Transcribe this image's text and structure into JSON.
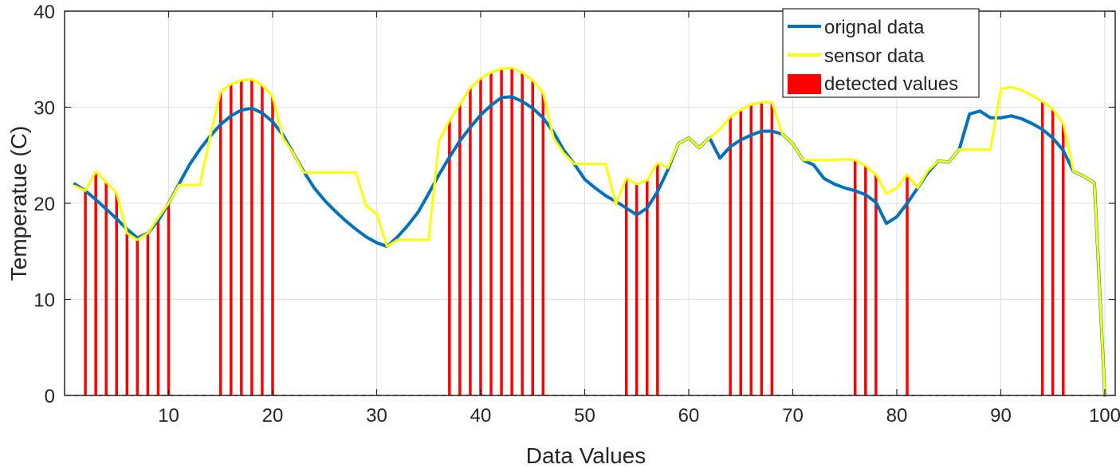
{
  "chart_data": {
    "type": "line",
    "title": "",
    "xlabel": "Data Values",
    "ylabel": "Temperatue (C)",
    "xlim": [
      0,
      101
    ],
    "ylim": [
      0,
      40
    ],
    "x_ticks": [
      10,
      20,
      30,
      40,
      50,
      60,
      70,
      80,
      90,
      100
    ],
    "y_ticks": [
      0,
      10,
      20,
      30,
      40
    ],
    "grid": true,
    "legend_position": "top-right",
    "colors": {
      "original": "#0072BD",
      "sensor": "#FFFF00",
      "detected": "#FF0000",
      "grid": "#E0E0E0",
      "axis": "#262626"
    },
    "series": [
      {
        "name": "orignal data",
        "color": "#0072BD",
        "x": [
          1,
          2,
          3,
          4,
          5,
          6,
          7,
          8,
          9,
          10,
          11,
          12,
          13,
          14,
          15,
          16,
          17,
          18,
          19,
          20,
          21,
          22,
          23,
          24,
          25,
          26,
          27,
          28,
          29,
          30,
          31,
          32,
          33,
          34,
          35,
          36,
          37,
          38,
          39,
          40,
          41,
          42,
          43,
          44,
          45,
          46,
          47,
          48,
          49,
          50,
          51,
          52,
          53,
          54,
          55,
          56,
          57,
          58,
          59,
          60,
          61,
          62,
          63,
          64,
          65,
          66,
          67,
          68,
          69,
          70,
          71,
          72,
          73,
          74,
          75,
          76,
          77,
          78,
          79,
          80,
          81,
          82,
          83,
          84,
          85,
          86,
          87,
          88,
          89,
          90,
          91,
          92,
          93,
          94,
          95,
          96,
          97,
          98,
          99,
          100
        ],
        "values": [
          22,
          21.3,
          20.4,
          19.4,
          18.4,
          17.3,
          16.4,
          16.9,
          18.2,
          20,
          22,
          24,
          25.6,
          27,
          28.2,
          29.1,
          29.7,
          29.9,
          29.4,
          28.5,
          27.1,
          25.2,
          23.3,
          21.6,
          20.3,
          19.2,
          18.2,
          17.3,
          16.5,
          15.9,
          15.5,
          16.5,
          17.7,
          19.1,
          21,
          23,
          24.8,
          26.5,
          27.9,
          29.2,
          30.2,
          31,
          31.1,
          30.6,
          29.9,
          28.9,
          27.4,
          25.5,
          24.1,
          22.5,
          21.6,
          20.8,
          20.2,
          19.5,
          18.8,
          19.5,
          21.2,
          23.5,
          26.2,
          26.8,
          25.8,
          26.8,
          24.7,
          25.9,
          26.6,
          27.1,
          27.5,
          27.5,
          27.2,
          26.2,
          24.5,
          24,
          22.6,
          22,
          21.6,
          21.3,
          20.9,
          20.1,
          17.9,
          18.6,
          20,
          21.6,
          23.2,
          24.4,
          24.3,
          25.6,
          29.3,
          29.6,
          28.9,
          28.9,
          29.1,
          28.8,
          28.3,
          27.7,
          26.8,
          25.5,
          23.3,
          22.8,
          22.1,
          0
        ]
      },
      {
        "name": "sensor data",
        "color": "#FFFF00",
        "x": [
          1,
          2,
          3,
          4,
          5,
          6,
          7,
          8,
          9,
          10,
          11,
          12,
          13,
          14,
          15,
          16,
          17,
          18,
          19,
          20,
          21,
          22,
          23,
          24,
          25,
          26,
          27,
          28,
          29,
          30,
          31,
          32,
          33,
          34,
          35,
          36,
          37,
          38,
          39,
          40,
          41,
          42,
          43,
          44,
          45,
          46,
          47,
          48,
          49,
          50,
          51,
          52,
          53,
          54,
          55,
          56,
          57,
          58,
          59,
          60,
          61,
          62,
          63,
          64,
          65,
          66,
          67,
          68,
          69,
          70,
          71,
          72,
          73,
          74,
          75,
          76,
          77,
          78,
          79,
          80,
          81,
          82,
          83,
          84,
          85,
          86,
          87,
          88,
          89,
          90,
          91,
          92,
          93,
          94,
          95,
          96,
          97,
          98,
          99,
          100
        ],
        "values": [
          21.8,
          21.3,
          23.3,
          22.2,
          21.1,
          16.9,
          16.2,
          16.9,
          18.5,
          20,
          21.9,
          21.9,
          21.9,
          27,
          31.6,
          32.4,
          32.8,
          32.9,
          32.3,
          31.1,
          26.8,
          25.2,
          23.2,
          23.2,
          23.2,
          23.2,
          23.2,
          23.2,
          19.7,
          18.9,
          15.5,
          16.2,
          16.2,
          16.2,
          16.2,
          26.5,
          28.6,
          30.3,
          32,
          33,
          33.6,
          34,
          34.1,
          33.6,
          32.8,
          31.5,
          26.8,
          25.2,
          24.1,
          24.1,
          24.1,
          24.1,
          19.9,
          22.6,
          22,
          22.4,
          24.2,
          23.7,
          26.2,
          26.8,
          25.8,
          26.8,
          27.7,
          29,
          29.7,
          30.3,
          30.5,
          30.5,
          27.2,
          26.2,
          24.5,
          24.5,
          24.5,
          24.5,
          24.6,
          24.5,
          23.9,
          23,
          21,
          21.6,
          23,
          21.6,
          23.4,
          24.4,
          24.3,
          25.6,
          25.6,
          25.6,
          25.6,
          31.9,
          32.1,
          31.8,
          31.2,
          30.6,
          29.8,
          28.3,
          23.3,
          22.8,
          22.1,
          0
        ]
      },
      {
        "name": "detected values",
        "color": "#FF0000",
        "type": "stem",
        "x": [
          2,
          3,
          4,
          5,
          6,
          7,
          8,
          9,
          10,
          15,
          16,
          17,
          18,
          19,
          20,
          37,
          38,
          39,
          40,
          41,
          42,
          43,
          44,
          45,
          46,
          54,
          55,
          56,
          57,
          64,
          65,
          66,
          67,
          68,
          76,
          77,
          78,
          81,
          94,
          95,
          96
        ],
        "values": [
          21.3,
          23.3,
          22.2,
          21.1,
          16.9,
          16.2,
          16.9,
          18.5,
          20,
          31.6,
          32.4,
          32.8,
          32.9,
          32.3,
          31.1,
          28.6,
          30.3,
          32,
          33,
          33.6,
          34,
          34.1,
          33.6,
          32.8,
          31.5,
          22.6,
          22,
          22.4,
          24.2,
          29,
          29.7,
          30.3,
          30.5,
          30.5,
          24.5,
          23.9,
          23,
          23,
          30.6,
          29.8,
          28.3
        ]
      }
    ]
  }
}
